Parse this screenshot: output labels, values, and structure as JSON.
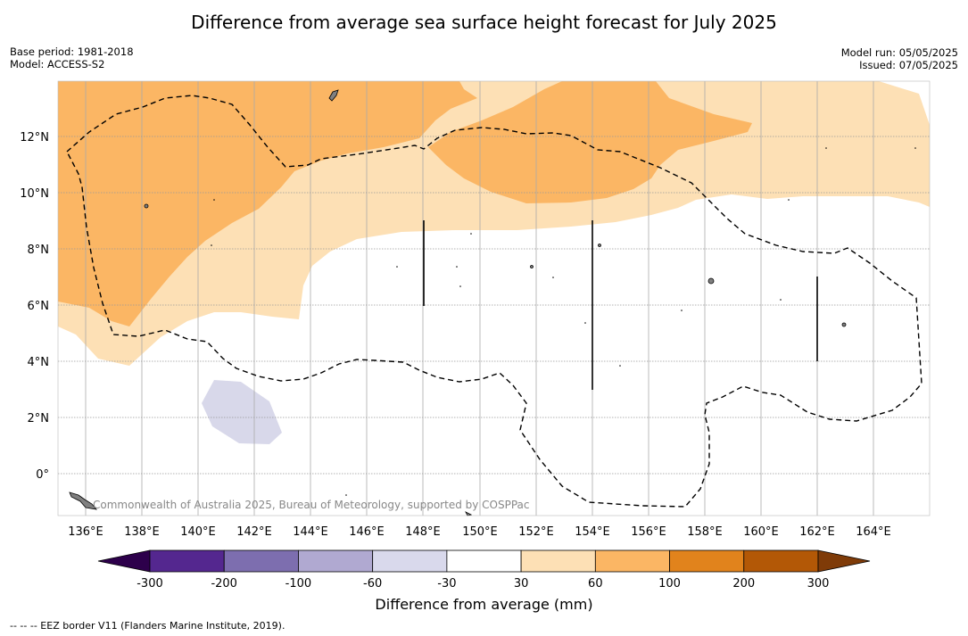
{
  "title": "Difference from average sea surface height forecast for July 2025",
  "meta_left": {
    "base_period": "Base period: 1981-2018",
    "model": "Model: ACCESS-S2"
  },
  "meta_right": {
    "model_run": "Model run: 05/05/2025",
    "issued": "Issued: 07/05/2025"
  },
  "map": {
    "lon_range": [
      135,
      166
    ],
    "lat_range": [
      -1.4,
      14
    ],
    "lon_ticks": [
      "136°E",
      "138°E",
      "140°E",
      "142°E",
      "144°E",
      "146°E",
      "148°E",
      "150°E",
      "152°E",
      "154°E",
      "156°E",
      "158°E",
      "160°E",
      "162°E",
      "164°E"
    ],
    "lat_ticks": [
      "12°N",
      "10°N",
      "8°N",
      "6°N",
      "4°N",
      "2°N",
      "0°"
    ],
    "credit": "Commonwealth of Australia 2025, Bureau of Meteorology, supported by COSPPac",
    "colors": {
      "land": "#808080",
      "grid": "#aaaaaa",
      "eez": "#000000"
    }
  },
  "colorbar": {
    "ticks": [
      "-300",
      "-200",
      "-100",
      "-60",
      "-30",
      "30",
      "60",
      "100",
      "200",
      "300"
    ],
    "colors": [
      "#54278f",
      "#7d6eaf",
      "#b0a9d1",
      "#d9d9ec",
      "#ffffff",
      "#fde0b5",
      "#fbb664",
      "#e1831c",
      "#b35806"
    ],
    "extend_low": "#2d004b",
    "extend_high": "#7f3b08",
    "label": "Difference from average (mm)"
  },
  "footnote": "-- -- -- EEZ border V11 (Flanders Marine Institute, 2019)."
}
